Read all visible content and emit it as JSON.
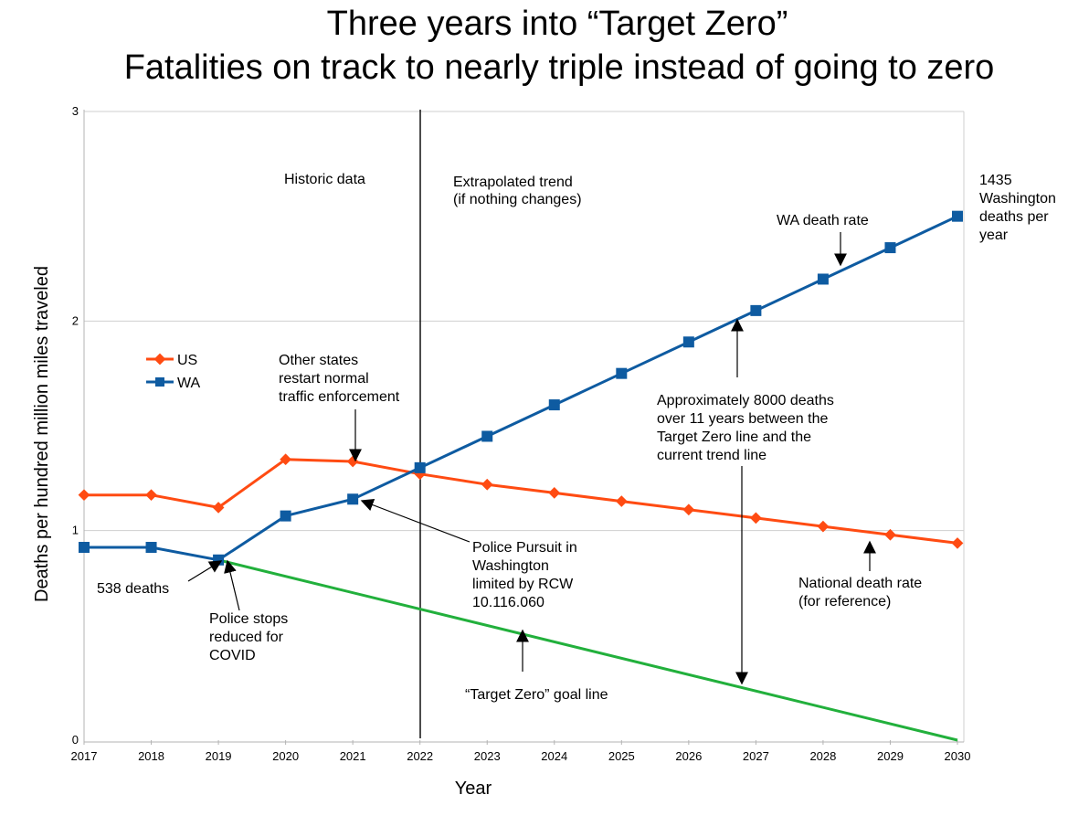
{
  "chart_data": {
    "type": "line",
    "title_line1": "Three years into “Target Zero”",
    "title_line2": "Fatalities on track to nearly triple instead of going to zero",
    "xlabel": "Year",
    "ylabel": "Deaths per hundred million miles traveled",
    "x": [
      2017,
      2018,
      2019,
      2020,
      2021,
      2022,
      2023,
      2024,
      2025,
      2026,
      2027,
      2028,
      2029,
      2030
    ],
    "x_tick_labels": [
      "2017",
      "2018",
      "2019",
      "2020",
      "2021",
      "2022",
      "2023",
      "2024",
      "2025",
      "2026",
      "2027",
      "2028",
      "2029",
      "2030"
    ],
    "xlim": [
      2017,
      2030
    ],
    "ylim": [
      0,
      3
    ],
    "y_ticks": [
      0,
      1,
      2,
      3
    ],
    "y_tick_labels": [
      "0",
      "1",
      "2",
      "3"
    ],
    "grid": "horizontal",
    "legend_position": "left",
    "series": [
      {
        "name": "US",
        "color": "#ff4b12",
        "marker": "diamond",
        "values": [
          1.17,
          1.17,
          1.11,
          1.34,
          1.33,
          1.27,
          1.22,
          1.18,
          1.14,
          1.1,
          1.06,
          1.02,
          0.98,
          0.94
        ]
      },
      {
        "name": "WA",
        "color": "#0e5ba1",
        "marker": "square",
        "values": [
          0.92,
          0.92,
          0.86,
          1.07,
          1.15,
          1.3,
          1.45,
          1.6,
          1.75,
          1.9,
          2.05,
          2.2,
          2.35,
          2.5
        ]
      },
      {
        "name": "",
        "color": "#22b03c",
        "marker": "none",
        "x": [
          2019,
          2030
        ],
        "values": [
          0.86,
          0
        ]
      }
    ],
    "divider_year": 2022,
    "annotations": {
      "historic": [
        "Historic data"
      ],
      "extrapolated": [
        "Extrapolated trend",
        "(if nothing changes)"
      ],
      "washington_deaths": [
        "1435",
        "Washington",
        "deaths per",
        "year"
      ],
      "wa_death_rate": [
        "WA death rate"
      ],
      "other_states": [
        "Other states",
        "restart normal",
        "traffic enforcement"
      ],
      "approx_deaths": [
        "Approximately 8000 deaths",
        "over 11 years between the",
        "Target Zero line and the",
        "current trend line"
      ],
      "pursuit": [
        "Police Pursuit in",
        "Washington",
        "limited by RCW",
        "10.116.060"
      ],
      "deaths_538": [
        "538 deaths"
      ],
      "police_stops": [
        "Police stops",
        "reduced for",
        "COVID"
      ],
      "national_rate": [
        "National death rate",
        "(for reference)"
      ],
      "goal_line": [
        "“Target Zero” goal line"
      ]
    }
  }
}
